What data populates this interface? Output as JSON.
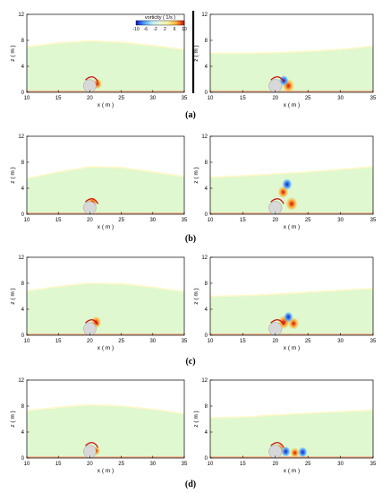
{
  "chart_data": {
    "type": "heatmap",
    "xlabel": "x ( m )",
    "ylabel": "z ( m )",
    "xlim": [
      10,
      35
    ],
    "ylim": [
      0,
      12
    ],
    "xticks": [
      10,
      15,
      20,
      25,
      30,
      35
    ],
    "yticks": [
      0,
      4,
      8,
      12
    ],
    "colorbar": {
      "title": "vorticity ( 1/s )",
      "ticks": [
        "-10",
        "-6",
        "-2",
        "2",
        "6",
        "10"
      ],
      "range": [
        -10,
        10
      ],
      "colors": [
        "#1010c0",
        "#4aa0ff",
        "#b8ecff",
        "#e9f9d6",
        "#f6f09a",
        "#ffb13b",
        "#d40000"
      ]
    },
    "colors": {
      "field": "#dff8d0",
      "water_surface": "#fff8c8",
      "solid": "#d8d8d8",
      "seabed": "#f2b08a",
      "positive": "#cc1010",
      "negative": "#2020b0"
    },
    "rows": [
      {
        "label": "(a)",
        "panels": [
          {
            "surface": [
              [
                10,
                7.0
              ],
              [
                15,
                7.6
              ],
              [
                20,
                7.9
              ],
              [
                25,
                7.7
              ],
              [
                30,
                7.2
              ],
              [
                35,
                6.6
              ]
            ],
            "obstacle": [
              20,
              1.0,
              1.0
            ],
            "vortices": [
              {
                "x": 21.2,
                "z": 1.3,
                "sign": 1,
                "strength": 0.6
              }
            ]
          },
          {
            "surface": [
              [
                10,
                6.0
              ],
              [
                15,
                6.0
              ],
              [
                20,
                6.1
              ],
              [
                25,
                6.3
              ],
              [
                30,
                6.6
              ],
              [
                35,
                7.1
              ]
            ],
            "obstacle": [
              20,
              1.0,
              1.0
            ],
            "vortices": [
              {
                "x": 22.0,
                "z": 1.0,
                "sign": 1,
                "strength": 1.0
              },
              {
                "x": 21.3,
                "z": 1.8,
                "sign": -1,
                "strength": 0.6
              }
            ]
          }
        ]
      },
      {
        "label": "(b)",
        "panels": [
          {
            "surface": [
              [
                10,
                5.5
              ],
              [
                15,
                6.5
              ],
              [
                20,
                7.3
              ],
              [
                25,
                7.2
              ],
              [
                30,
                6.5
              ],
              [
                35,
                5.8
              ]
            ],
            "obstacle": [
              20,
              1.0,
              1.0
            ],
            "vortices": [
              {
                "x": 20.4,
                "z": 1.8,
                "sign": 1,
                "strength": 0.7
              }
            ]
          },
          {
            "surface": [
              [
                10,
                5.7
              ],
              [
                15,
                5.9
              ],
              [
                20,
                6.2
              ],
              [
                25,
                6.5
              ],
              [
                30,
                6.9
              ],
              [
                35,
                7.3
              ]
            ],
            "obstacle": [
              20,
              1.0,
              1.0
            ],
            "vortices": [
              {
                "x": 21.2,
                "z": 3.4,
                "sign": 1,
                "strength": 0.8
              },
              {
                "x": 21.8,
                "z": 4.6,
                "sign": -1,
                "strength": 0.7
              },
              {
                "x": 22.5,
                "z": 1.6,
                "sign": 1,
                "strength": 1.0
              }
            ]
          }
        ]
      },
      {
        "label": "(c)",
        "panels": [
          {
            "surface": [
              [
                10,
                6.8
              ],
              [
                15,
                7.5
              ],
              [
                20,
                8.0
              ],
              [
                25,
                7.9
              ],
              [
                30,
                7.4
              ],
              [
                35,
                6.7
              ]
            ],
            "obstacle": [
              20,
              1.0,
              1.0
            ],
            "vortices": [
              {
                "x": 21.0,
                "z": 2.0,
                "sign": 1,
                "strength": 0.8
              }
            ]
          },
          {
            "surface": [
              [
                10,
                6.0
              ],
              [
                15,
                6.1
              ],
              [
                20,
                6.3
              ],
              [
                25,
                6.6
              ],
              [
                30,
                6.9
              ],
              [
                35,
                7.2
              ]
            ],
            "obstacle": [
              20,
              1.0,
              1.0
            ],
            "vortices": [
              {
                "x": 21.3,
                "z": 2.0,
                "sign": 1,
                "strength": 1.0
              },
              {
                "x": 22.8,
                "z": 1.8,
                "sign": 1,
                "strength": 0.8
              },
              {
                "x": 22.0,
                "z": 2.8,
                "sign": -1,
                "strength": 0.6
              }
            ]
          }
        ]
      },
      {
        "label": "(d)",
        "panels": [
          {
            "surface": [
              [
                10,
                7.3
              ],
              [
                15,
                7.8
              ],
              [
                20,
                8.2
              ],
              [
                25,
                8.0
              ],
              [
                30,
                7.5
              ],
              [
                35,
                6.8
              ]
            ],
            "obstacle": [
              20,
              1.0,
              1.0
            ],
            "vortices": [
              {
                "x": 21.0,
                "z": 1.1,
                "sign": 1,
                "strength": 0.4
              }
            ]
          },
          {
            "surface": [
              [
                10,
                6.2
              ],
              [
                15,
                6.3
              ],
              [
                20,
                6.6
              ],
              [
                25,
                6.9
              ],
              [
                30,
                7.1
              ],
              [
                35,
                7.4
              ]
            ],
            "obstacle": [
              20,
              1.0,
              1.0
            ],
            "vortices": [
              {
                "x": 20.6,
                "z": 1.4,
                "sign": 1,
                "strength": 0.7
              },
              {
                "x": 21.6,
                "z": 1.0,
                "sign": -1,
                "strength": 0.6
              },
              {
                "x": 23.0,
                "z": 0.8,
                "sign": 1,
                "strength": 0.6
              },
              {
                "x": 24.2,
                "z": 0.9,
                "sign": -1,
                "strength": 0.6
              }
            ]
          }
        ]
      }
    ]
  }
}
